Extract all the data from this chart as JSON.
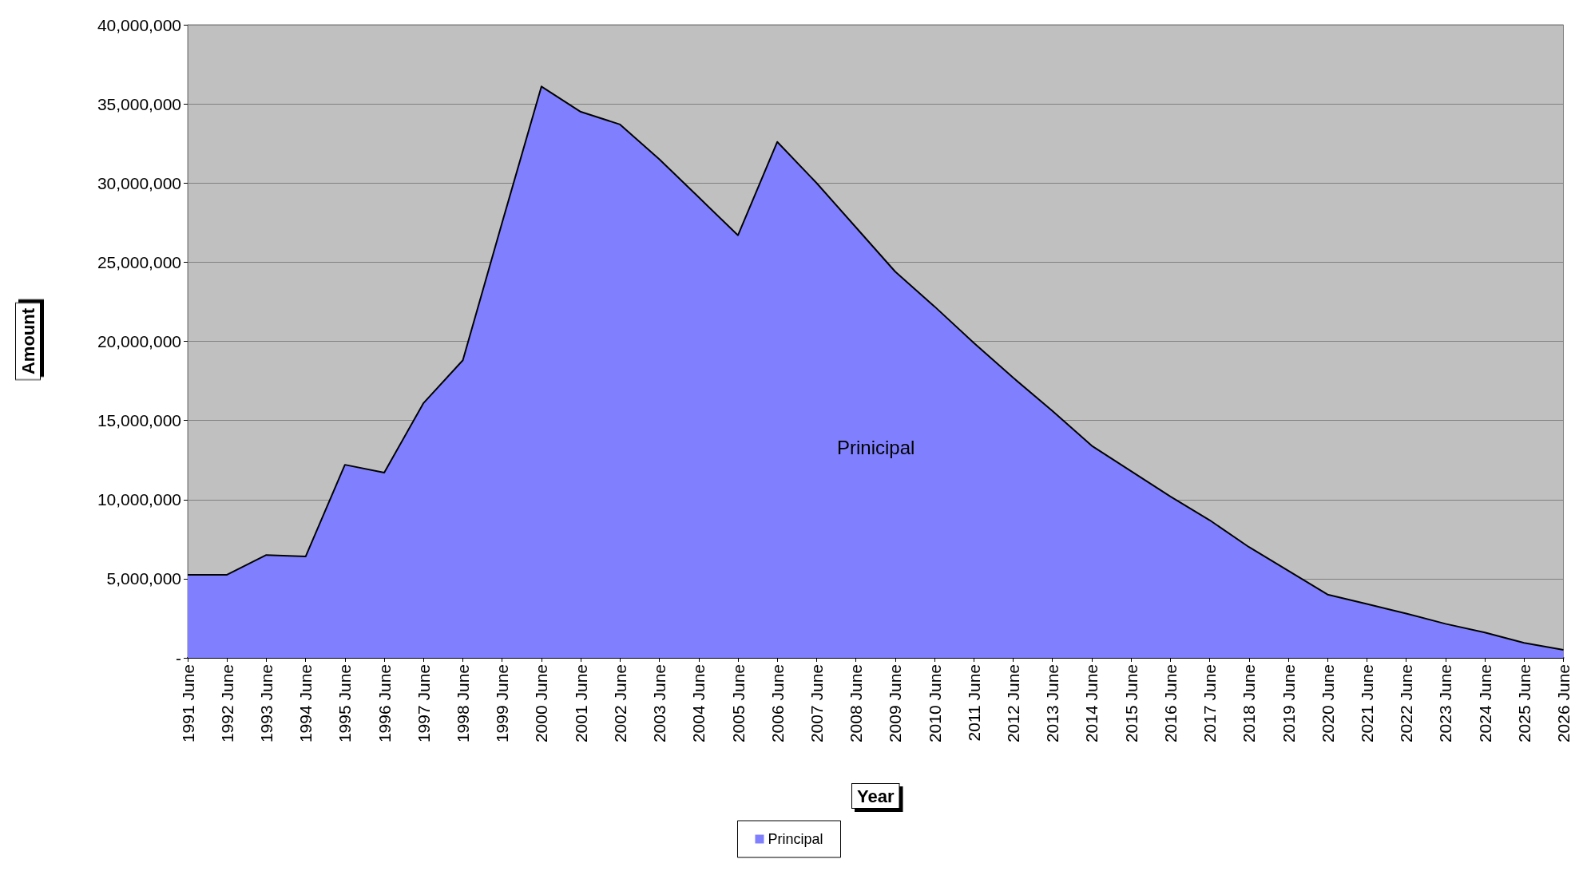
{
  "chart_data": {
    "type": "area",
    "xlabel": "Year",
    "ylabel": "Amount",
    "categories": [
      "1991 June",
      "1992 June",
      "1993 June",
      "1994 June",
      "1995 June",
      "1996 June",
      "1997 June",
      "1998 June",
      "1999 June",
      "2000 June",
      "2001 June",
      "2002 June",
      "2003 June",
      "2004 June",
      "2005 June",
      "2006 June",
      "2007 June",
      "2008 June",
      "2009 June",
      "2010 June",
      "2011 June",
      "2012 June",
      "2013 June",
      "2014 June",
      "2015 June",
      "2016 June",
      "2017 June",
      "2018 June",
      "2019 June",
      "2020 June",
      "2021 June",
      "2022 June",
      "2023 June",
      "2024 June",
      "2025 June",
      "2026 June"
    ],
    "series": [
      {
        "name": "Principal",
        "color": "#8080ff",
        "values": [
          5250000,
          5250000,
          6500000,
          6400000,
          12200000,
          11700000,
          16100000,
          18800000,
          27500000,
          36100000,
          34500000,
          33700000,
          31500000,
          29100000,
          26700000,
          32600000,
          30000000,
          27200000,
          24400000,
          22200000,
          19900000,
          17700000,
          15600000,
          13400000,
          11800000,
          10200000,
          8700000,
          7000000,
          5500000,
          4000000,
          3400000,
          2800000,
          2150000,
          1600000,
          950000,
          500000
        ]
      }
    ],
    "ylim": [
      0,
      40000000
    ],
    "yticks": [
      {
        "value": 0,
        "label": "-"
      },
      {
        "value": 5000000,
        "label": "5,000,000"
      },
      {
        "value": 10000000,
        "label": "10,000,000"
      },
      {
        "value": 15000000,
        "label": "15,000,000"
      },
      {
        "value": 20000000,
        "label": "20,000,000"
      },
      {
        "value": 25000000,
        "label": "25,000,000"
      },
      {
        "value": 30000000,
        "label": "30,000,000"
      },
      {
        "value": 35000000,
        "label": "35,000,000"
      },
      {
        "value": 40000000,
        "label": "40,000,000"
      }
    ],
    "annotations": [
      "Prinicipal"
    ],
    "grid": "y",
    "legend": "bottom",
    "marker": "none"
  }
}
